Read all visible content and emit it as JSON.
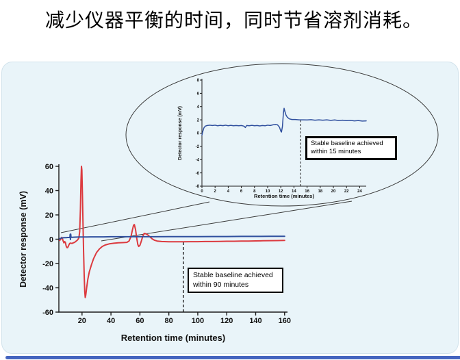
{
  "title": {
    "text": "减少仪器平衡的时间，同时节省溶剂消耗。"
  },
  "colors": {
    "red_trace": "#dc3a3f",
    "blue_trace": "#2f4f9e",
    "panel_bg": "#e9f4f9",
    "panel_border": "#d2e3ec",
    "bottom_bar": "#4565c0",
    "axis": "#1a1a1a",
    "annotation_bg": "#ffffff",
    "annotation_border": "#000000"
  },
  "annotations": {
    "main_box": {
      "line1": "Stable baseline achieved",
      "line2": "within 90 minutes"
    },
    "inset_box": {
      "line1": "Stable baseline achieved",
      "line2": "within 15 minutes"
    }
  },
  "chart_data": [
    {
      "id": "main-chromatogram",
      "type": "line",
      "title": "",
      "xlabel": "Retention time (minutes)",
      "ylabel": "Detector response (mV)",
      "xlim": [
        4,
        162
      ],
      "ylim": [
        -60,
        60
      ],
      "xticks": [
        20,
        40,
        60,
        80,
        100,
        120,
        140,
        160
      ],
      "yticks": [
        60,
        40,
        20,
        0,
        -20,
        -40,
        -60
      ],
      "grid": false,
      "legend": "none",
      "vline": {
        "x": 90,
        "y_from": -60,
        "y_to": -2,
        "style": "dashed",
        "label": "Stable baseline achieved within 90 minutes"
      },
      "series": [
        {
          "name": "conventional-lc-red",
          "color": "red_trace",
          "width": 2,
          "points": [
            [
              4.5,
              -1
            ],
            [
              5,
              -0.5
            ],
            [
              5.5,
              0.5
            ],
            [
              6,
              1.5
            ],
            [
              6.5,
              0.3
            ],
            [
              7,
              -1.5
            ],
            [
              7.5,
              -3
            ],
            [
              8,
              -2
            ],
            [
              8.5,
              -2.5
            ],
            [
              9,
              -5.5
            ],
            [
              9.5,
              -6.8
            ],
            [
              10,
              -7
            ],
            [
              10.5,
              -6
            ],
            [
              11,
              -4.5
            ],
            [
              11.5,
              -3.5
            ],
            [
              12,
              -3.2
            ],
            [
              13,
              -3.5
            ],
            [
              14,
              -3
            ],
            [
              15,
              -2.5
            ],
            [
              16,
              -1.5
            ],
            [
              17,
              -0.5
            ],
            [
              17.8,
              1
            ],
            [
              18.4,
              6
            ],
            [
              18.9,
              25
            ],
            [
              19.3,
              48
            ],
            [
              19.6,
              60
            ],
            [
              19.9,
              57
            ],
            [
              20.3,
              35
            ],
            [
              20.7,
              12
            ],
            [
              21.1,
              -10
            ],
            [
              21.5,
              -30
            ],
            [
              21.9,
              -43
            ],
            [
              22.2,
              -48
            ],
            [
              22.6,
              -46
            ],
            [
              23.2,
              -40
            ],
            [
              24,
              -33
            ],
            [
              25,
              -27
            ],
            [
              26.5,
              -21
            ],
            [
              28,
              -16
            ],
            [
              30,
              -11
            ],
            [
              32,
              -8
            ],
            [
              34,
              -6
            ],
            [
              36,
              -4.8
            ],
            [
              39,
              -3.8
            ],
            [
              42,
              -3.3
            ],
            [
              45,
              -3
            ],
            [
              48,
              -2.8
            ],
            [
              51,
              -2.6
            ],
            [
              52.5,
              -1.5
            ],
            [
              53.8,
              2
            ],
            [
              54.8,
              7.5
            ],
            [
              55.6,
              11.5
            ],
            [
              56.2,
              12
            ],
            [
              57,
              8
            ],
            [
              57.8,
              1
            ],
            [
              58.6,
              -4.5
            ],
            [
              59.2,
              -6
            ],
            [
              60,
              -5
            ],
            [
              61,
              -1.5
            ],
            [
              62,
              2.5
            ],
            [
              63,
              4.8
            ],
            [
              64,
              4.5
            ],
            [
              65.5,
              3.5
            ],
            [
              67,
              1.8
            ],
            [
              68.5,
              0.3
            ],
            [
              70,
              -0.8
            ],
            [
              72,
              -1.5
            ],
            [
              75,
              -1.9
            ],
            [
              80,
              -2.1
            ],
            [
              85,
              -2.1
            ],
            [
              90,
              -2.1
            ],
            [
              95,
              -2
            ],
            [
              100,
              -2
            ],
            [
              105,
              -1.9
            ],
            [
              110,
              -1.9
            ],
            [
              115,
              -1.8
            ],
            [
              120,
              -1.7
            ],
            [
              125,
              -1.7
            ],
            [
              130,
              -1.6
            ],
            [
              135,
              -1.5
            ],
            [
              140,
              -1.4
            ],
            [
              145,
              -1.3
            ],
            [
              150,
              -1.2
            ],
            [
              155,
              -1.1
            ],
            [
              160,
              -1
            ]
          ]
        },
        {
          "name": "optimized-lc-blue",
          "color": "blue_trace",
          "width": 2,
          "points": [
            [
              4.5,
              0.3
            ],
            [
              5,
              0.6
            ],
            [
              6,
              1
            ],
            [
              7,
              1.2
            ],
            [
              8,
              1.3
            ],
            [
              9,
              1.3
            ],
            [
              10,
              1.4
            ],
            [
              11,
              1.4
            ],
            [
              11.6,
              1.4
            ],
            [
              11.8,
              4
            ],
            [
              12,
              -0.3
            ],
            [
              12.2,
              4.2
            ],
            [
              12.4,
              1.5
            ],
            [
              13,
              1.6
            ],
            [
              15,
              1.7
            ],
            [
              18,
              1.8
            ],
            [
              22,
              1.8
            ],
            [
              26,
              1.9
            ],
            [
              30,
              1.9
            ],
            [
              35,
              1.9
            ],
            [
              40,
              2
            ],
            [
              50,
              2
            ],
            [
              60,
              2
            ],
            [
              70,
              2
            ],
            [
              80,
              2.1
            ],
            [
              90,
              2.1
            ],
            [
              100,
              2.1
            ],
            [
              110,
              2.2
            ],
            [
              120,
              2.2
            ],
            [
              130,
              2.3
            ],
            [
              140,
              2.3
            ],
            [
              150,
              2.4
            ],
            [
              160,
              2.4
            ]
          ]
        }
      ]
    },
    {
      "id": "inset-magnified",
      "type": "line",
      "title": "",
      "xlabel": "Retention time (minutes)",
      "ylabel": "Detector response (mV)",
      "xlim": [
        0,
        25
      ],
      "ylim": [
        -8,
        8
      ],
      "xticks": [
        0,
        2,
        4,
        6,
        8,
        10,
        12,
        14,
        16,
        18,
        20,
        22,
        24
      ],
      "yticks": [
        8,
        6,
        4,
        2,
        0,
        -2,
        -4,
        -6,
        -8
      ],
      "grid": false,
      "legend": "none",
      "vline": {
        "x": 15,
        "y_from": -8,
        "y_to": 2,
        "style": "dashed",
        "label": "Stable baseline achieved within 15 minutes"
      },
      "series": [
        {
          "name": "optimized-lc-blue",
          "color": "blue_trace",
          "width": 2,
          "points": [
            [
              0,
              -0.3
            ],
            [
              0.15,
              0.3
            ],
            [
              0.3,
              0.8
            ],
            [
              0.5,
              1.05
            ],
            [
              0.8,
              1.15
            ],
            [
              1.2,
              1.2
            ],
            [
              1.6,
              1.15
            ],
            [
              2,
              1.2
            ],
            [
              2.4,
              1.1
            ],
            [
              2.8,
              1.18
            ],
            [
              3.2,
              1.12
            ],
            [
              3.6,
              1.2
            ],
            [
              4,
              1.1
            ],
            [
              4.4,
              1.18
            ],
            [
              4.8,
              1.1
            ],
            [
              5.2,
              1.15
            ],
            [
              5.6,
              1.1
            ],
            [
              6,
              1.15
            ],
            [
              6.4,
              1.05
            ],
            [
              6.6,
              0.85
            ],
            [
              6.8,
              1.15
            ],
            [
              7.2,
              1.1
            ],
            [
              7.6,
              1.18
            ],
            [
              8,
              1.1
            ],
            [
              8.4,
              1.15
            ],
            [
              8.8,
              1.08
            ],
            [
              9.2,
              1.15
            ],
            [
              9.6,
              1.1
            ],
            [
              10,
              1.2
            ],
            [
              10.4,
              1.15
            ],
            [
              10.8,
              1.25
            ],
            [
              11.2,
              1.3
            ],
            [
              11.5,
              1.25
            ],
            [
              11.8,
              0.9
            ],
            [
              12,
              0.3
            ],
            [
              12.1,
              0.15
            ],
            [
              12.25,
              1
            ],
            [
              12.4,
              3
            ],
            [
              12.5,
              3.75
            ],
            [
              12.65,
              3.2
            ],
            [
              12.8,
              2.7
            ],
            [
              13,
              2.4
            ],
            [
              13.3,
              2.15
            ],
            [
              13.7,
              2.05
            ],
            [
              14.2,
              2.05
            ],
            [
              14.8,
              2
            ],
            [
              15.4,
              2
            ],
            [
              16,
              1.98
            ],
            [
              16.6,
              2.02
            ],
            [
              17.2,
              1.95
            ],
            [
              17.8,
              2
            ],
            [
              18.4,
              1.95
            ],
            [
              19,
              2
            ],
            [
              19.6,
              1.92
            ],
            [
              20.2,
              1.98
            ],
            [
              20.8,
              1.9
            ],
            [
              21.4,
              1.95
            ],
            [
              22,
              1.88
            ],
            [
              22.6,
              1.92
            ],
            [
              23.2,
              1.85
            ],
            [
              23.8,
              1.9
            ],
            [
              24.4,
              1.82
            ],
            [
              25,
              1.85
            ]
          ]
        }
      ]
    }
  ]
}
